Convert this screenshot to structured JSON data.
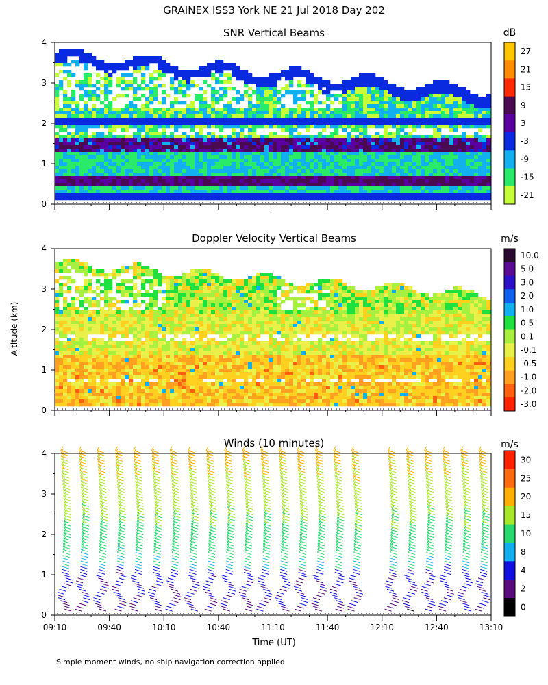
{
  "title": "GRAINEX ISS3 York NE  21 Jul 2018 Day 202",
  "ylabel": "Altitude (km)",
  "xlabel": "Time (UT)",
  "footnote": "Simple moment winds, no ship navigation correction applied",
  "chart_data": [
    {
      "type": "heatmap",
      "title": "SNR Vertical Beams",
      "unit": "dB",
      "x_ticklabels": [],
      "xlim_minutes_after_0910": [
        0,
        240
      ],
      "ylim": [
        0,
        4
      ],
      "yticks": [
        0,
        1,
        2,
        3,
        4
      ],
      "colorbar": {
        "labels": [
          "27",
          "21",
          "15",
          "9",
          "3",
          "-3",
          "-9",
          "-15",
          "-21"
        ],
        "colors": [
          "#ffc600",
          "#ff8c00",
          "#ff2a00",
          "#4a0a52",
          "#5a00a0",
          "#0a2ae0",
          "#13b0f0",
          "#2aea6a",
          "#c6ff3a"
        ]
      },
      "bands": [
        {
          "altitude_km": 0.55,
          "color": "#3a1a8a"
        },
        {
          "altitude_km": 1.45,
          "color": "#3a1a8a"
        },
        {
          "altitude_km": 2.05,
          "color": "#0a2ae0"
        },
        {
          "altitude_km": 2.95,
          "color": "#0a2ae0"
        }
      ]
    },
    {
      "type": "heatmap",
      "title": "Doppler Velocity Vertical Beams",
      "unit": "m/s",
      "x_ticklabels": [],
      "xlim_minutes_after_0910": [
        0,
        240
      ],
      "ylim": [
        0,
        4
      ],
      "yticks": [
        0,
        1,
        2,
        3,
        4
      ],
      "colorbar": {
        "labels": [
          "10.0",
          "5.0",
          "3.0",
          "2.0",
          "1.0",
          "0.5",
          "0.1",
          "-0.1",
          "-0.5",
          "-1.0",
          "-2.0",
          "-3.0"
        ],
        "colors": [
          "#2a0a30",
          "#5a0a90",
          "#2a10c8",
          "#1060f0",
          "#10b0f0",
          "#20e040",
          "#a8f040",
          "#eaf04a",
          "#ffd020",
          "#ffa020",
          "#ff6010",
          "#ff2000"
        ]
      }
    },
    {
      "type": "wind_barbs",
      "title": "Winds (10 minutes)",
      "unit": "m/s",
      "x_ticklabels": [
        "09:10",
        "09:40",
        "10:10",
        "10:40",
        "11:10",
        "11:40",
        "12:10",
        "12:40",
        "13:10"
      ],
      "xlim_minutes_after_0910": [
        0,
        240
      ],
      "ylim": [
        0,
        4
      ],
      "yticks": [
        0,
        1,
        2,
        3,
        4
      ],
      "profile_times": [
        "09:10",
        "09:20",
        "09:30",
        "09:40",
        "09:50",
        "10:00",
        "10:10",
        "10:20",
        "10:30",
        "10:40",
        "10:50",
        "11:00",
        "11:10",
        "11:20",
        "11:30",
        "11:40",
        "11:50",
        "12:10",
        "12:20",
        "12:30",
        "12:40",
        "12:50",
        "13:00"
      ],
      "colorbar": {
        "labels": [
          "30",
          "25",
          "20",
          "15",
          "10",
          "8",
          "4",
          "2",
          "0"
        ],
        "colors": [
          "#ff2000",
          "#ff6a10",
          "#ffb000",
          "#a8e82a",
          "#2ad870",
          "#10b0f0",
          "#1010e0",
          "#5a0a7a",
          "#000000"
        ]
      }
    }
  ]
}
